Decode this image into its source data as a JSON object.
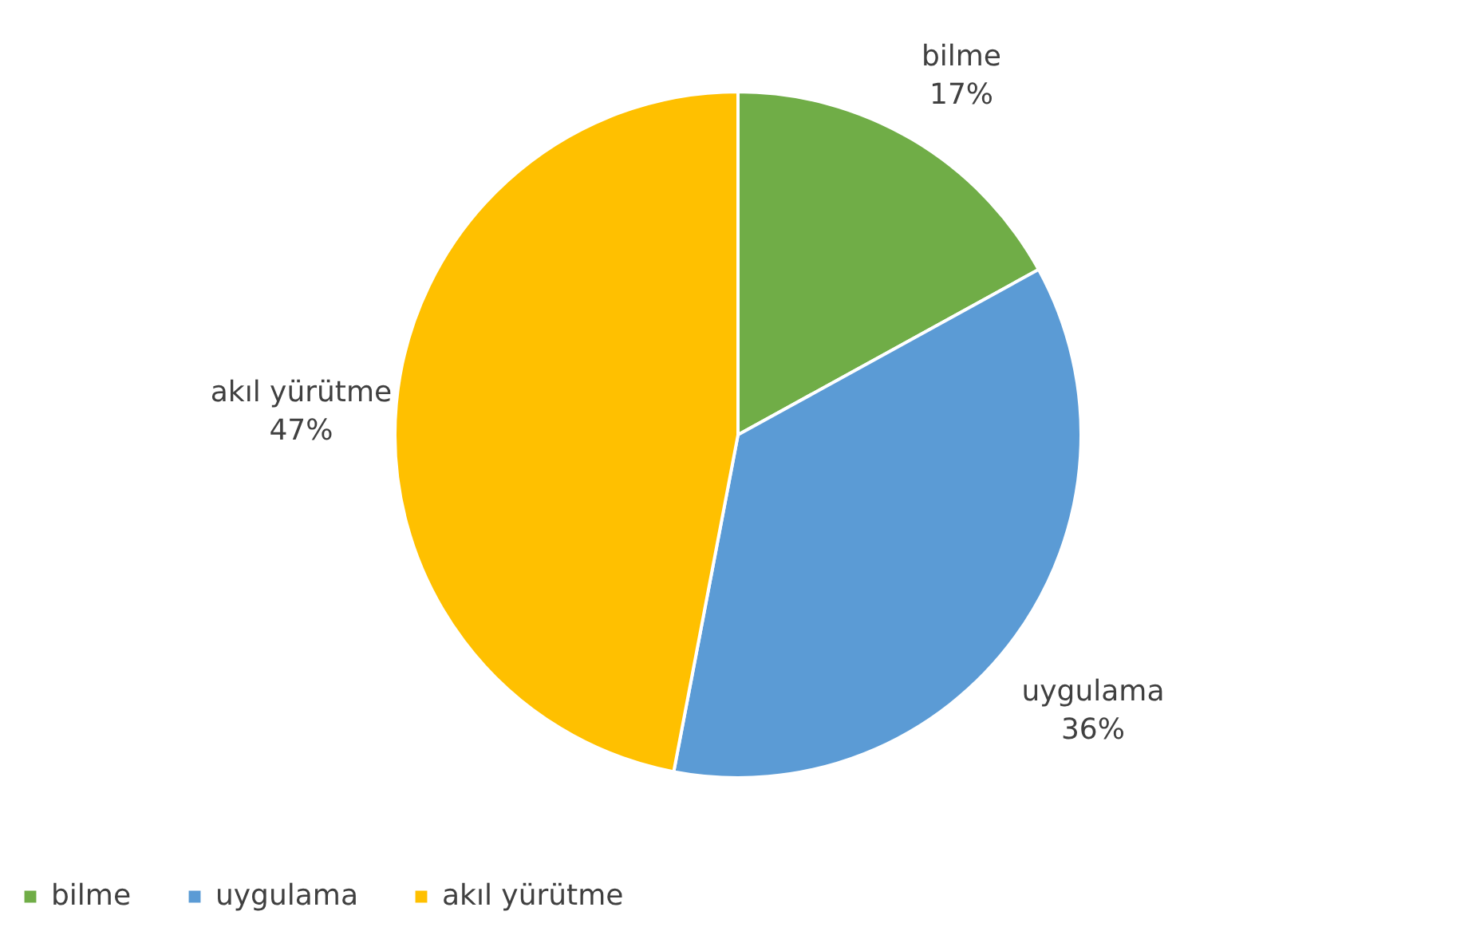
{
  "chart_data": {
    "type": "pie",
    "categories": [
      "bilme",
      "uygulama",
      "akıl yürütme"
    ],
    "values": [
      17,
      36,
      47
    ],
    "value_labels": [
      "17%",
      "36%",
      "47%"
    ],
    "colors": [
      "#70ad47",
      "#5b9bd5",
      "#ffc000"
    ],
    "legend": "bottom"
  }
}
